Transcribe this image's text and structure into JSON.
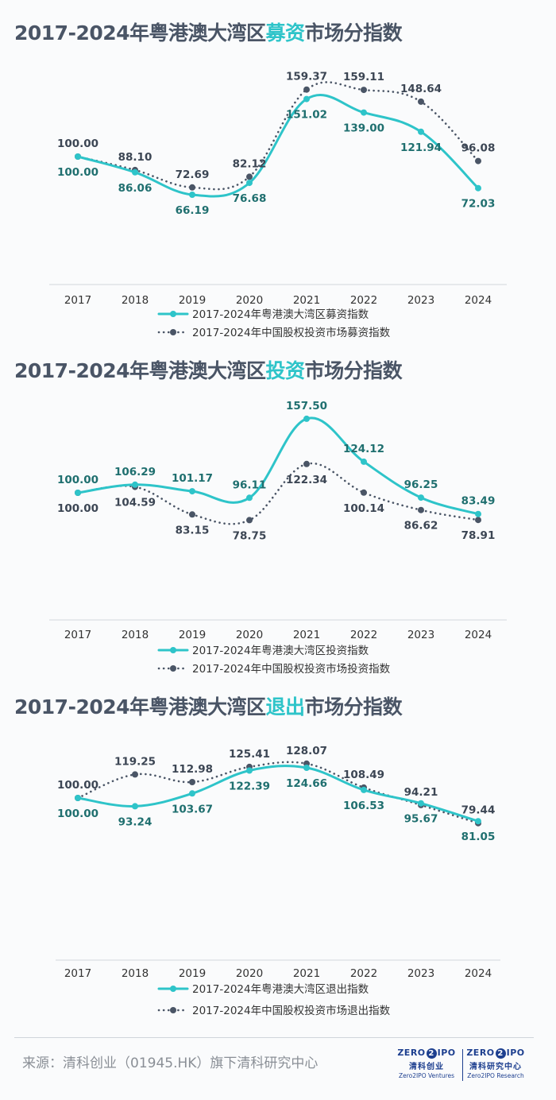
{
  "colors": {
    "primary": "#2ec4c9",
    "secondary": "#4a5566"
  },
  "chart_data": [
    {
      "type": "line",
      "title_prefix": "2017-2024年粤港澳大湾区",
      "title_highlight": "募资",
      "title_suffix": "市场分指数",
      "categories": [
        "2017",
        "2018",
        "2019",
        "2020",
        "2021",
        "2022",
        "2023",
        "2024"
      ],
      "series": [
        {
          "name": "2017-2024年粤港澳大湾区募资指数",
          "labels": [
            "100.00",
            "86.06",
            "66.19",
            "76.68",
            "151.02",
            "139.00",
            "121.94",
            "72.03"
          ],
          "values": [
            100.0,
            86.06,
            66.19,
            76.68,
            151.02,
            139.0,
            121.94,
            72.03
          ]
        },
        {
          "name": "2017-2024年中国股权投资市场募资指数",
          "labels": [
            "100.00",
            "88.10",
            "72.69",
            "82.12",
            "159.37",
            "159.11",
            "148.64",
            "96.08"
          ],
          "values": [
            100.0,
            88.1,
            72.69,
            82.12,
            159.37,
            159.11,
            148.64,
            96.08
          ]
        }
      ]
    },
    {
      "type": "line",
      "title_prefix": "2017-2024年粤港澳大湾区",
      "title_highlight": "投资",
      "title_suffix": "市场分指数",
      "categories": [
        "2017",
        "2018",
        "2019",
        "2020",
        "2021",
        "2022",
        "2023",
        "2024"
      ],
      "series": [
        {
          "name": "2017-2024年粤港澳大湾区投资指数",
          "labels": [
            "100.00",
            "106.29",
            "101.17",
            "96.11",
            "157.50",
            "124.12",
            "96.25",
            "83.49"
          ],
          "values": [
            100.0,
            106.29,
            101.17,
            96.11,
            157.5,
            124.12,
            96.25,
            83.49
          ]
        },
        {
          "name": "2017-2024年中国股权投资市场投资指数",
          "labels": [
            "100.00",
            "104.59",
            "83.15",
            "78.75",
            "122.34",
            "100.14",
            "86.62",
            "78.91"
          ],
          "values": [
            100.0,
            104.59,
            83.15,
            78.75,
            122.34,
            100.14,
            86.62,
            78.91
          ]
        }
      ]
    },
    {
      "type": "line",
      "title_prefix": "2017-2024年粤港澳大湾区",
      "title_highlight": "退出",
      "title_suffix": "市场分指数",
      "categories": [
        "2017",
        "2018",
        "2019",
        "2020",
        "2021",
        "2022",
        "2023",
        "2024"
      ],
      "series": [
        {
          "name": "2017-2024年粤港澳大湾区退出指数",
          "labels": [
            "100.00",
            "93.24",
            "103.67",
            "122.39",
            "124.66",
            "106.53",
            "95.67",
            "81.05"
          ],
          "values": [
            100.0,
            93.24,
            103.67,
            122.39,
            124.66,
            106.53,
            95.67,
            81.05
          ]
        },
        {
          "name": "2017-2024年中国股权投资市场退出指数",
          "labels": [
            "100.00",
            "119.25",
            "112.98",
            "125.41",
            "128.07",
            "108.49",
            "94.21",
            "79.44"
          ],
          "values": [
            100.0,
            119.25,
            112.98,
            125.41,
            128.07,
            108.49,
            94.21,
            79.44
          ]
        }
      ]
    }
  ],
  "footer": {
    "source": "来源：清科创业（01945.HK）旗下清科研究中心",
    "logo_left": {
      "mark_a": "ZERO",
      "mark_two": "2",
      "mark_b": "IPO",
      "cn": "清科创业",
      "en": "Zero2IPO Ventures"
    },
    "logo_right": {
      "mark_a": "ZERO",
      "mark_two": "2",
      "mark_b": "IPO",
      "cn": "清科研究中心",
      "en": "Zero2IPO Research"
    }
  }
}
